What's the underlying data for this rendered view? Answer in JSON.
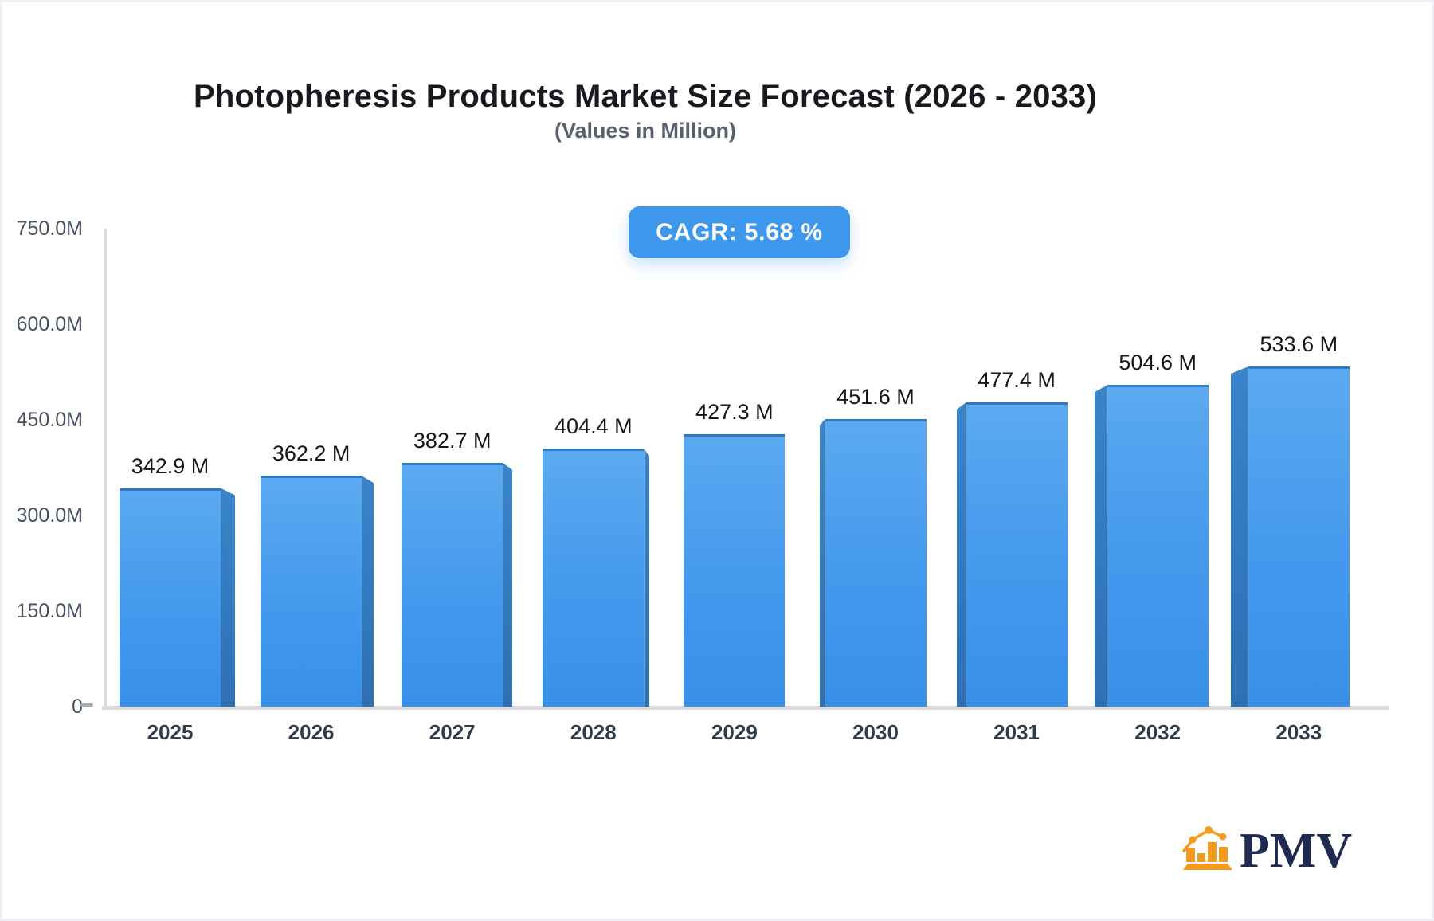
{
  "header": {
    "title": "Photopheresis Products Market Size Forecast (2026 - 2033)",
    "subtitle": "(Values in Million)",
    "cagr_label": "CAGR: 5.68 %"
  },
  "logo": {
    "text": "PMV",
    "icon": "bar-chart-with-trend-icon",
    "icon_color": "#F49A20",
    "text_color": "#1F2A50"
  },
  "chart_data": {
    "type": "bar",
    "title": "Photopheresis Products Market Size Forecast (2026 - 2033)",
    "subtitle": "(Values in Million)",
    "cagr": "5.68 %",
    "unit": "M",
    "categories": [
      "2025",
      "2026",
      "2027",
      "2028",
      "2029",
      "2030",
      "2031",
      "2032",
      "2033"
    ],
    "values": [
      342.9,
      362.2,
      382.7,
      404.4,
      427.3,
      451.6,
      477.4,
      504.6,
      533.6
    ],
    "value_labels": [
      "342.9 M",
      "362.2 M",
      "382.7 M",
      "404.4 M",
      "427.3 M",
      "451.6 M",
      "477.4 M",
      "504.6 M",
      "533.6 M"
    ],
    "y_ticks": [
      {
        "label": "750.0M",
        "value": 750
      },
      {
        "label": "600.0M",
        "value": 600
      },
      {
        "label": "450.0M",
        "value": 450
      },
      {
        "label": "300.0M",
        "value": 300
      },
      {
        "label": "150.0M",
        "value": 150
      },
      {
        "label": "0",
        "value": 0
      }
    ],
    "ylim": [
      0,
      750
    ],
    "xlabel": "",
    "ylabel": "",
    "grid": false,
    "legend": false,
    "bar_style": "3d-perspective-center-vanishing",
    "colors": {
      "bar_front_top": "#5BA9F0",
      "bar_front_bottom": "#3890E8",
      "bar_top_edge": "#2E7AC1",
      "bar_side": "#2F75BA",
      "axis": "#D8DBE1",
      "badge": "#3D97EC",
      "value_label_text": "#141619",
      "tick_text": "#46505E"
    }
  }
}
